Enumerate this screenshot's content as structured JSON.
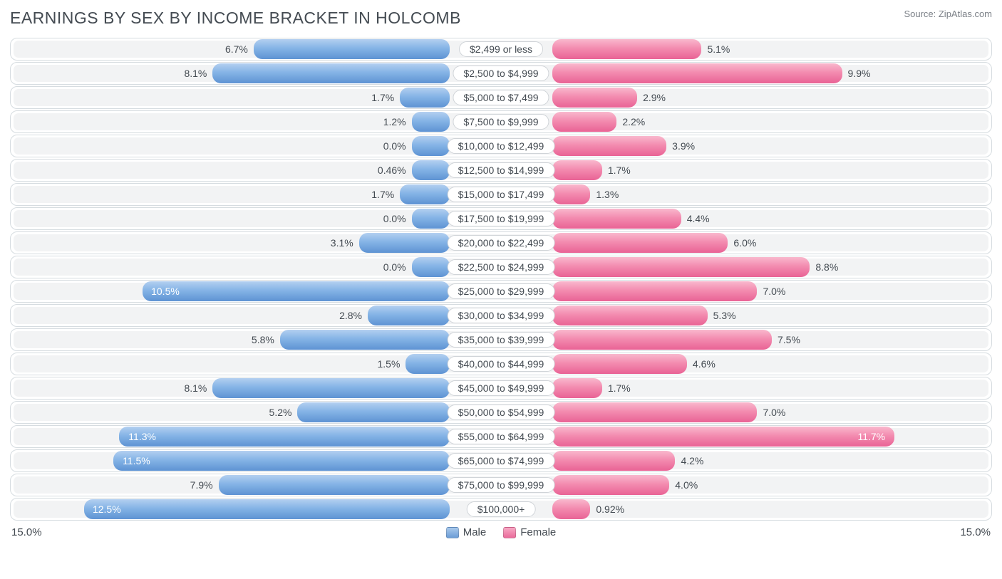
{
  "title": "EARNINGS BY SEX BY INCOME BRACKET IN HOLCOMB",
  "source": "Source: ZipAtlas.com",
  "axis_max_label": "15.0%",
  "axis_max_value": 15.0,
  "legend": {
    "male": "Male",
    "female": "Female"
  },
  "colors": {
    "male_top": "#b3cff0",
    "male_bottom": "#5e93d3",
    "female_top": "#f9b8cd",
    "female_bottom": "#e96395",
    "row_border": "#d6dce0",
    "row_bg": "#f2f3f4",
    "text": "#444b52",
    "page_bg": "#ffffff"
  },
  "min_bar_pct": 1.3,
  "pct_inside_threshold": 10.0,
  "rows": [
    {
      "label": "$2,499 or less",
      "male": 6.7,
      "male_str": "6.7%",
      "female": 5.1,
      "female_str": "5.1%"
    },
    {
      "label": "$2,500 to $4,999",
      "male": 8.1,
      "male_str": "8.1%",
      "female": 9.9,
      "female_str": "9.9%"
    },
    {
      "label": "$5,000 to $7,499",
      "male": 1.7,
      "male_str": "1.7%",
      "female": 2.9,
      "female_str": "2.9%"
    },
    {
      "label": "$7,500 to $9,999",
      "male": 1.2,
      "male_str": "1.2%",
      "female": 2.2,
      "female_str": "2.2%"
    },
    {
      "label": "$10,000 to $12,499",
      "male": 0.0,
      "male_str": "0.0%",
      "female": 3.9,
      "female_str": "3.9%"
    },
    {
      "label": "$12,500 to $14,999",
      "male": 0.46,
      "male_str": "0.46%",
      "female": 1.7,
      "female_str": "1.7%"
    },
    {
      "label": "$15,000 to $17,499",
      "male": 1.7,
      "male_str": "1.7%",
      "female": 1.3,
      "female_str": "1.3%"
    },
    {
      "label": "$17,500 to $19,999",
      "male": 0.0,
      "male_str": "0.0%",
      "female": 4.4,
      "female_str": "4.4%"
    },
    {
      "label": "$20,000 to $22,499",
      "male": 3.1,
      "male_str": "3.1%",
      "female": 6.0,
      "female_str": "6.0%"
    },
    {
      "label": "$22,500 to $24,999",
      "male": 0.0,
      "male_str": "0.0%",
      "female": 8.8,
      "female_str": "8.8%"
    },
    {
      "label": "$25,000 to $29,999",
      "male": 10.5,
      "male_str": "10.5%",
      "female": 7.0,
      "female_str": "7.0%"
    },
    {
      "label": "$30,000 to $34,999",
      "male": 2.8,
      "male_str": "2.8%",
      "female": 5.3,
      "female_str": "5.3%"
    },
    {
      "label": "$35,000 to $39,999",
      "male": 5.8,
      "male_str": "5.8%",
      "female": 7.5,
      "female_str": "7.5%"
    },
    {
      "label": "$40,000 to $44,999",
      "male": 1.5,
      "male_str": "1.5%",
      "female": 4.6,
      "female_str": "4.6%"
    },
    {
      "label": "$45,000 to $49,999",
      "male": 8.1,
      "male_str": "8.1%",
      "female": 1.7,
      "female_str": "1.7%"
    },
    {
      "label": "$50,000 to $54,999",
      "male": 5.2,
      "male_str": "5.2%",
      "female": 7.0,
      "female_str": "7.0%"
    },
    {
      "label": "$55,000 to $64,999",
      "male": 11.3,
      "male_str": "11.3%",
      "female": 11.7,
      "female_str": "11.7%"
    },
    {
      "label": "$65,000 to $74,999",
      "male": 11.5,
      "male_str": "11.5%",
      "female": 4.2,
      "female_str": "4.2%"
    },
    {
      "label": "$75,000 to $99,999",
      "male": 7.9,
      "male_str": "7.9%",
      "female": 4.0,
      "female_str": "4.0%"
    },
    {
      "label": "$100,000+",
      "male": 12.5,
      "male_str": "12.5%",
      "female": 0.92,
      "female_str": "0.92%"
    }
  ]
}
